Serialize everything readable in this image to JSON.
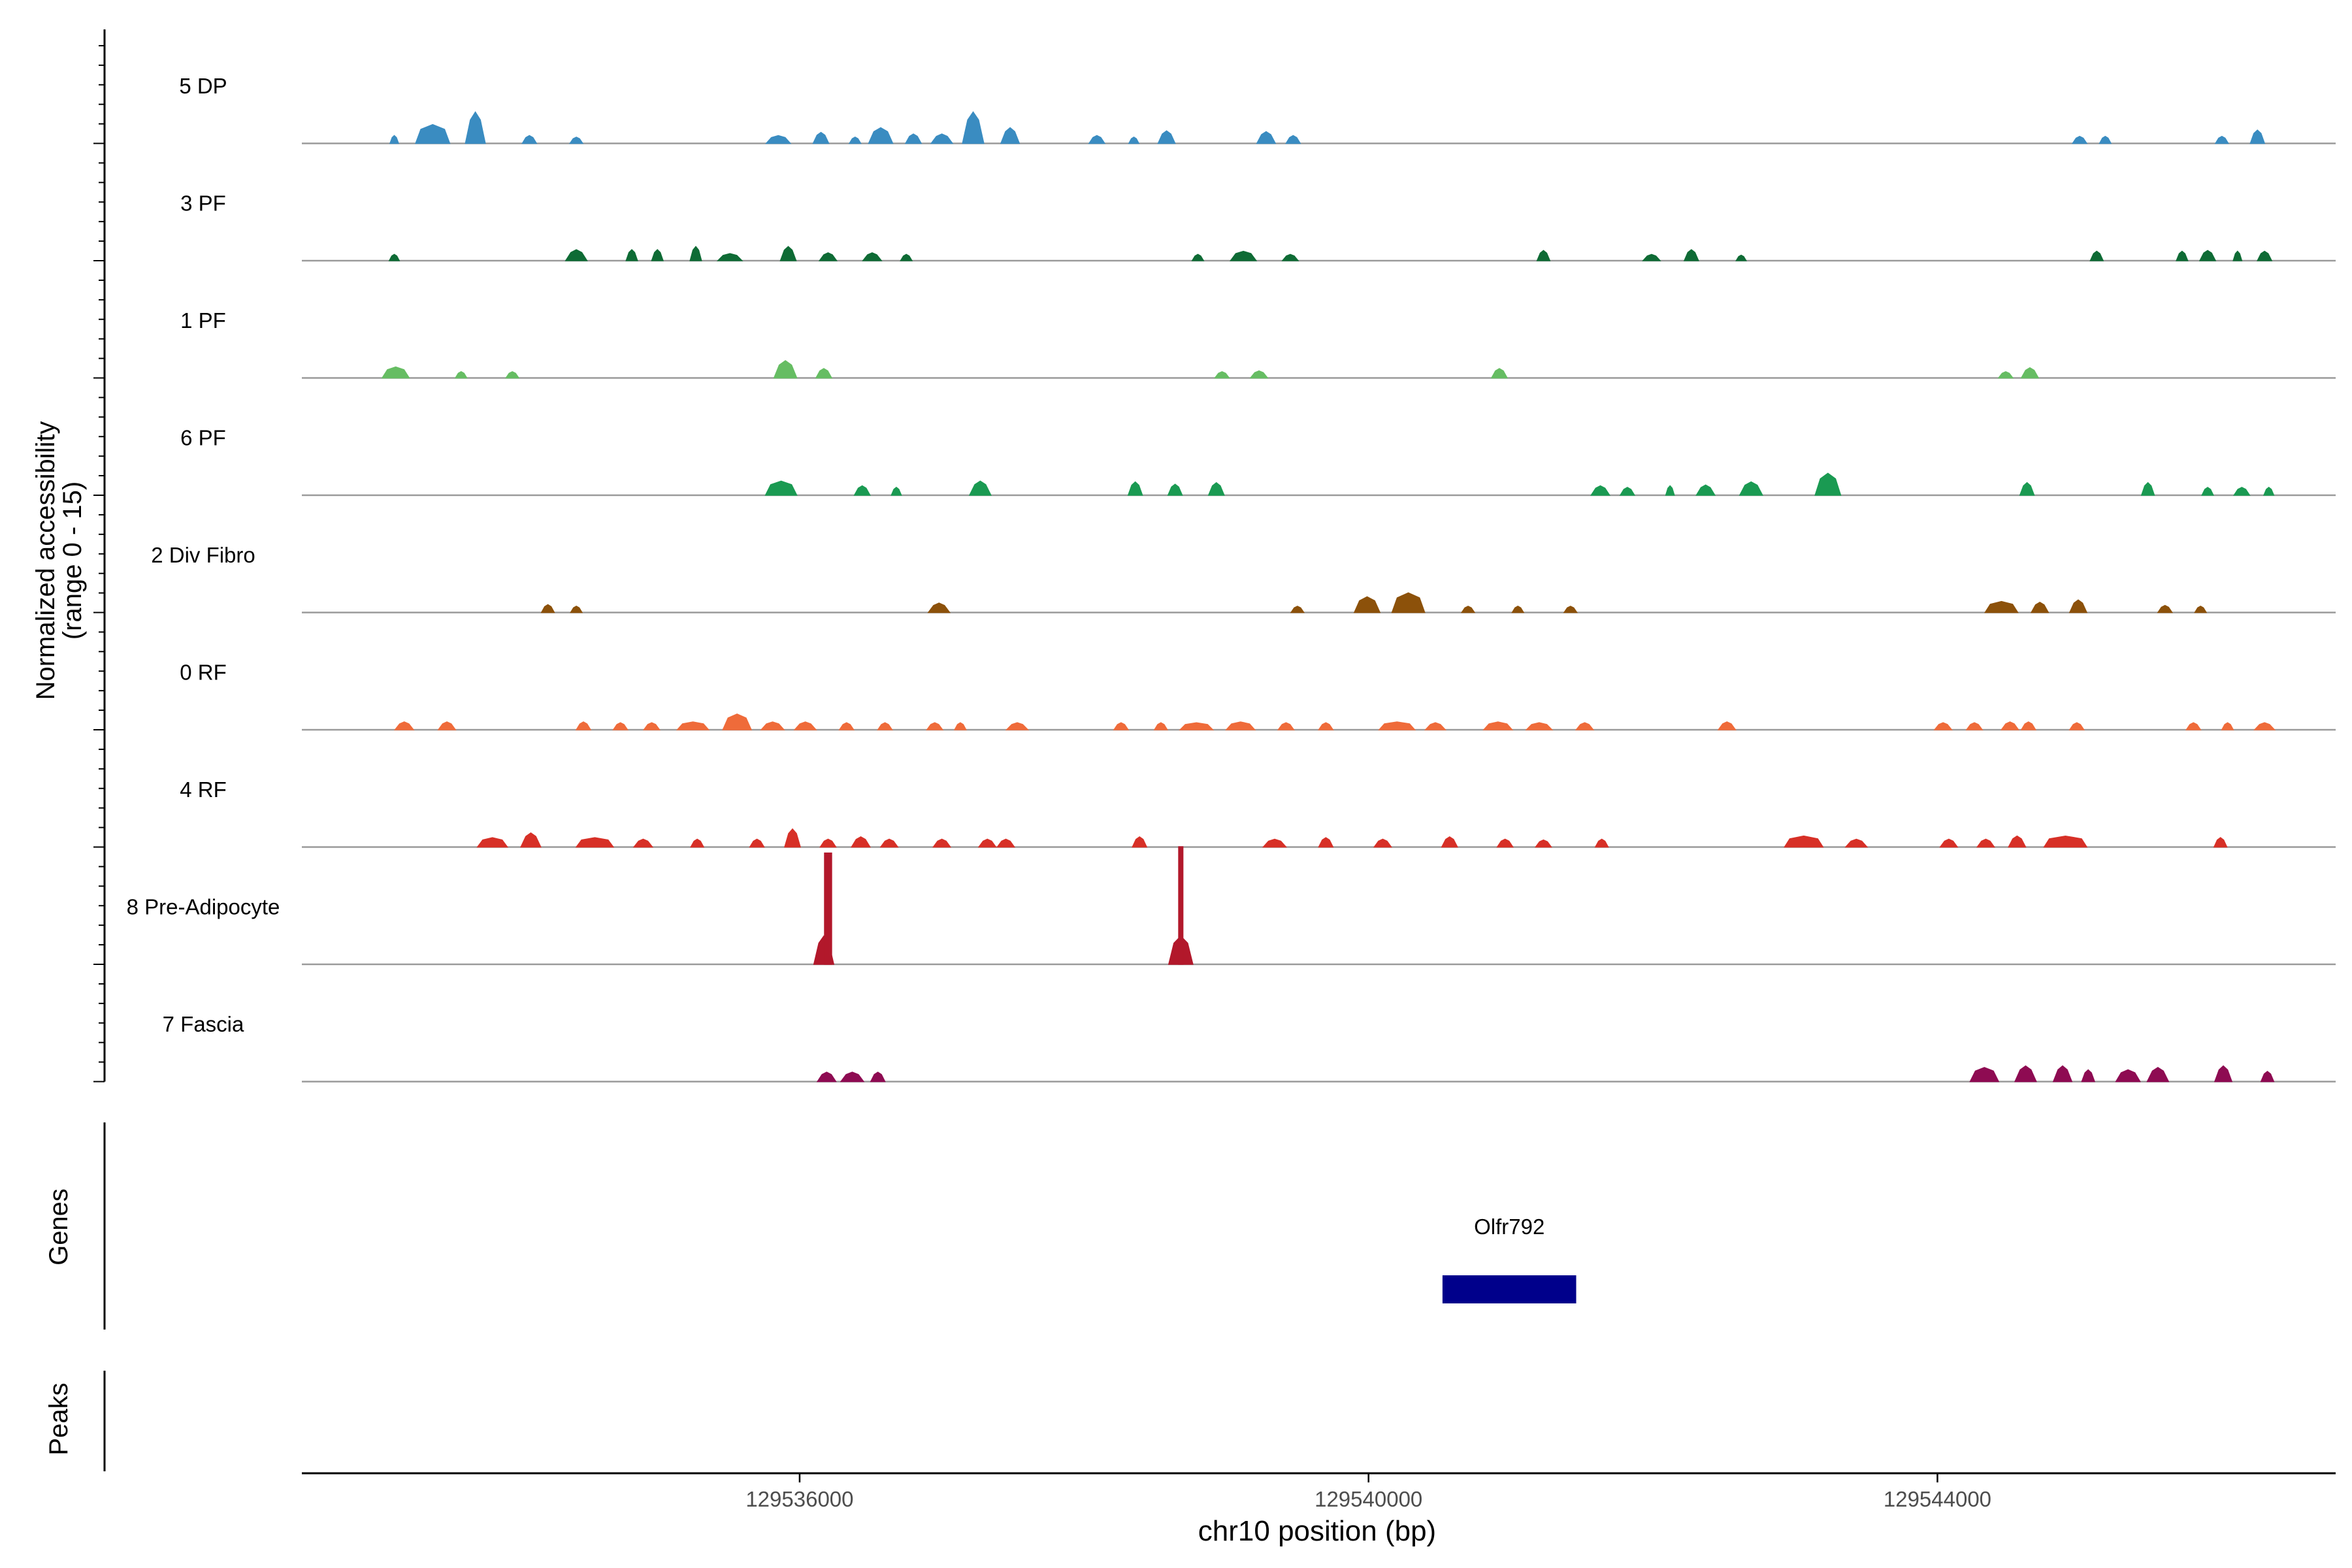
{
  "chart_data": {
    "type": "area",
    "title": "",
    "xlabel": "chr10 position (bp)",
    "ylabel": "Normalized accessibility",
    "ylabel_sub": "(range 0 - 15)",
    "xlim": [
      129532500,
      129546800
    ],
    "ylim": [
      0,
      15
    ],
    "x_ticks": [
      {
        "value": 129536000,
        "label": "129536000"
      },
      {
        "value": 129540000,
        "label": "129540000"
      },
      {
        "value": 129544000,
        "label": "129544000"
      }
    ],
    "series": [
      {
        "name": "5 DP",
        "color": "#3A8CC1",
        "peaks": [
          [
            129533150,
            60,
            1.0
          ],
          [
            129533420,
            240,
            2.4
          ],
          [
            129533720,
            140,
            4.0
          ],
          [
            129534100,
            100,
            1.0
          ],
          [
            129534430,
            90,
            0.8
          ],
          [
            129535850,
            170,
            1.0
          ],
          [
            129536150,
            110,
            1.4
          ],
          [
            129536390,
            80,
            0.8
          ],
          [
            129536570,
            170,
            2.0
          ],
          [
            129536800,
            110,
            1.2
          ],
          [
            129537000,
            150,
            1.2
          ],
          [
            129537220,
            150,
            4.0
          ],
          [
            129537480,
            130,
            2.0
          ],
          [
            129538090,
            110,
            1.0
          ],
          [
            129538350,
            70,
            0.8
          ],
          [
            129538580,
            120,
            1.6
          ],
          [
            129539280,
            130,
            1.5
          ],
          [
            129539470,
            100,
            1.0
          ],
          [
            129545000,
            100,
            0.9
          ],
          [
            129545180,
            80,
            0.9
          ],
          [
            129546000,
            90,
            0.9
          ],
          [
            129546250,
            100,
            1.7
          ]
        ]
      },
      {
        "name": "3 PF",
        "color": "#0E6B35",
        "peaks": [
          [
            129533150,
            70,
            0.8
          ],
          [
            129534430,
            150,
            1.4
          ],
          [
            129534820,
            80,
            1.4
          ],
          [
            129535000,
            80,
            1.4
          ],
          [
            129535270,
            80,
            1.8
          ],
          [
            129535510,
            170,
            0.9
          ],
          [
            129535920,
            110,
            1.8
          ],
          [
            129536200,
            120,
            1.0
          ],
          [
            129536510,
            130,
            1.0
          ],
          [
            129536750,
            80,
            0.8
          ],
          [
            129538800,
            80,
            0.8
          ],
          [
            129539120,
            180,
            1.2
          ],
          [
            129539450,
            110,
            0.8
          ],
          [
            129541230,
            90,
            1.3
          ],
          [
            129541990,
            120,
            0.8
          ],
          [
            129542270,
            100,
            1.4
          ],
          [
            129542620,
            70,
            0.7
          ],
          [
            129545120,
            90,
            1.2
          ],
          [
            129545720,
            80,
            1.2
          ],
          [
            129545900,
            110,
            1.3
          ],
          [
            129546110,
            60,
            1.2
          ],
          [
            129546300,
            100,
            1.2
          ]
        ]
      },
      {
        "name": "1 PF",
        "color": "#66BD63",
        "peaks": [
          [
            129533160,
            190,
            1.4
          ],
          [
            129533620,
            80,
            0.8
          ],
          [
            129533980,
            90,
            0.8
          ],
          [
            129535900,
            160,
            2.2
          ],
          [
            129536170,
            110,
            1.2
          ],
          [
            129538970,
            100,
            0.8
          ],
          [
            129539230,
            120,
            0.9
          ],
          [
            129540920,
            110,
            1.2
          ],
          [
            129544480,
            100,
            0.8
          ],
          [
            129544650,
            120,
            1.3
          ]
        ]
      },
      {
        "name": "6 PF",
        "color": "#1A9A52",
        "peaks": [
          [
            129535870,
            220,
            1.8
          ],
          [
            129536440,
            110,
            1.2
          ],
          [
            129536680,
            70,
            1.0
          ],
          [
            129537270,
            150,
            1.8
          ],
          [
            129538360,
            100,
            1.7
          ],
          [
            129538640,
            100,
            1.4
          ],
          [
            129538930,
            110,
            1.6
          ],
          [
            129541630,
            130,
            1.2
          ],
          [
            129541820,
            100,
            1.0
          ],
          [
            129542120,
            60,
            1.2
          ],
          [
            129542370,
            130,
            1.3
          ],
          [
            129542690,
            160,
            1.7
          ],
          [
            129543230,
            180,
            2.8
          ],
          [
            129544630,
            100,
            1.6
          ],
          [
            129545480,
            90,
            1.6
          ],
          [
            129545900,
            80,
            1.0
          ],
          [
            129546140,
            110,
            1.0
          ],
          [
            129546330,
            70,
            1.0
          ]
        ]
      },
      {
        "name": "2 Div Fibro",
        "color": "#8C510A",
        "peaks": [
          [
            129534230,
            90,
            1.0
          ],
          [
            129534430,
            80,
            0.8
          ],
          [
            129536980,
            150,
            1.2
          ],
          [
            129539500,
            90,
            0.8
          ],
          [
            129539990,
            180,
            2.0
          ],
          [
            129540280,
            230,
            2.5
          ],
          [
            129540700,
            90,
            0.8
          ],
          [
            129541050,
            80,
            0.8
          ],
          [
            129541420,
            90,
            0.8
          ],
          [
            129544450,
            230,
            1.4
          ],
          [
            129544720,
            120,
            1.3
          ],
          [
            129544990,
            120,
            1.6
          ],
          [
            129545600,
            100,
            0.9
          ],
          [
            129545850,
            80,
            0.8
          ]
        ]
      },
      {
        "name": "0 RF",
        "color": "#EF6B3A",
        "peaks": [
          [
            129533220,
            130,
            1.0
          ],
          [
            129533520,
            120,
            1.0
          ],
          [
            129534480,
            100,
            1.0
          ],
          [
            129534740,
            100,
            0.9
          ],
          [
            129534960,
            110,
            0.9
          ],
          [
            129535250,
            220,
            1.0
          ],
          [
            129535560,
            200,
            2.0
          ],
          [
            129535810,
            160,
            1.0
          ],
          [
            129536040,
            150,
            1.0
          ],
          [
            129536330,
            100,
            0.9
          ],
          [
            129536600,
            100,
            0.9
          ],
          [
            129536950,
            110,
            0.9
          ],
          [
            129537130,
            80,
            0.9
          ],
          [
            129537530,
            150,
            0.9
          ],
          [
            129538260,
            100,
            0.9
          ],
          [
            129538540,
            90,
            0.9
          ],
          [
            129538790,
            230,
            0.9
          ],
          [
            129539100,
            200,
            1.0
          ],
          [
            129539420,
            110,
            0.9
          ],
          [
            129539700,
            100,
            0.9
          ],
          [
            129540200,
            250,
            1.0
          ],
          [
            129540470,
            140,
            0.9
          ],
          [
            129540910,
            200,
            1.0
          ],
          [
            129541200,
            180,
            0.9
          ],
          [
            129541520,
            120,
            0.9
          ],
          [
            129542520,
            120,
            1.0
          ],
          [
            129544040,
            120,
            0.9
          ],
          [
            129544260,
            110,
            0.9
          ],
          [
            129544510,
            120,
            1.0
          ],
          [
            129544640,
            100,
            1.0
          ],
          [
            129544980,
            100,
            0.9
          ],
          [
            129545800,
            100,
            0.9
          ],
          [
            129546040,
            80,
            0.9
          ],
          [
            129546300,
            140,
            0.9
          ]
        ]
      },
      {
        "name": "4 RF",
        "color": "#D73027",
        "peaks": [
          [
            129533840,
            210,
            1.2
          ],
          [
            129534110,
            140,
            1.8
          ],
          [
            129534560,
            260,
            1.2
          ],
          [
            129534900,
            130,
            1.0
          ],
          [
            129535280,
            90,
            1.0
          ],
          [
            129535700,
            100,
            1.0
          ],
          [
            129535950,
            110,
            2.3
          ],
          [
            129536200,
            110,
            1.0
          ],
          [
            129536430,
            130,
            1.3
          ],
          [
            129536630,
            120,
            1.0
          ],
          [
            129537000,
            120,
            1.0
          ],
          [
            129537320,
            120,
            1.0
          ],
          [
            129537450,
            120,
            1.0
          ],
          [
            129538390,
            100,
            1.3
          ],
          [
            129539340,
            160,
            1.0
          ],
          [
            129539700,
            100,
            1.2
          ],
          [
            129540100,
            120,
            1.0
          ],
          [
            129540570,
            110,
            1.3
          ],
          [
            129540960,
            110,
            1.0
          ],
          [
            129541230,
            110,
            0.9
          ],
          [
            129541640,
            90,
            1.0
          ],
          [
            129543060,
            270,
            1.4
          ],
          [
            129543430,
            150,
            1.0
          ],
          [
            129544080,
            120,
            1.0
          ],
          [
            129544340,
            120,
            1.0
          ],
          [
            129544560,
            120,
            1.4
          ],
          [
            129544900,
            300,
            1.4
          ],
          [
            129545990,
            90,
            1.2
          ]
        ]
      },
      {
        "name": "8 Pre-Adipocyte",
        "color": "#B2182B",
        "peaks": [
          [
            129536170,
            140,
            3.6
          ],
          [
            129536200,
            50,
            14.2
          ],
          [
            129538680,
            170,
            3.6
          ],
          [
            129538680,
            30,
            15.0
          ]
        ]
      },
      {
        "name": "7 Fascia",
        "color": "#8E0B52",
        "peaks": [
          [
            129536190,
            130,
            1.2
          ],
          [
            129536370,
            160,
            1.2
          ],
          [
            129536550,
            100,
            1.2
          ],
          [
            129544330,
            200,
            1.8
          ],
          [
            129544620,
            150,
            2.0
          ],
          [
            129544880,
            130,
            2.0
          ],
          [
            129545060,
            90,
            1.5
          ],
          [
            129545340,
            170,
            1.5
          ],
          [
            129545550,
            150,
            1.8
          ],
          [
            129546010,
            120,
            2.0
          ],
          [
            129546320,
            90,
            1.3
          ]
        ]
      }
    ],
    "genes": [
      {
        "name": "Olfr792",
        "start": 129540520,
        "end": 129541460
      }
    ],
    "panel_labels": {
      "genes": "Genes",
      "peaks": "Peaks"
    }
  },
  "colors": {
    "gene": "#00008B",
    "baseline": "#9a9a9a",
    "axis": "#000000"
  }
}
